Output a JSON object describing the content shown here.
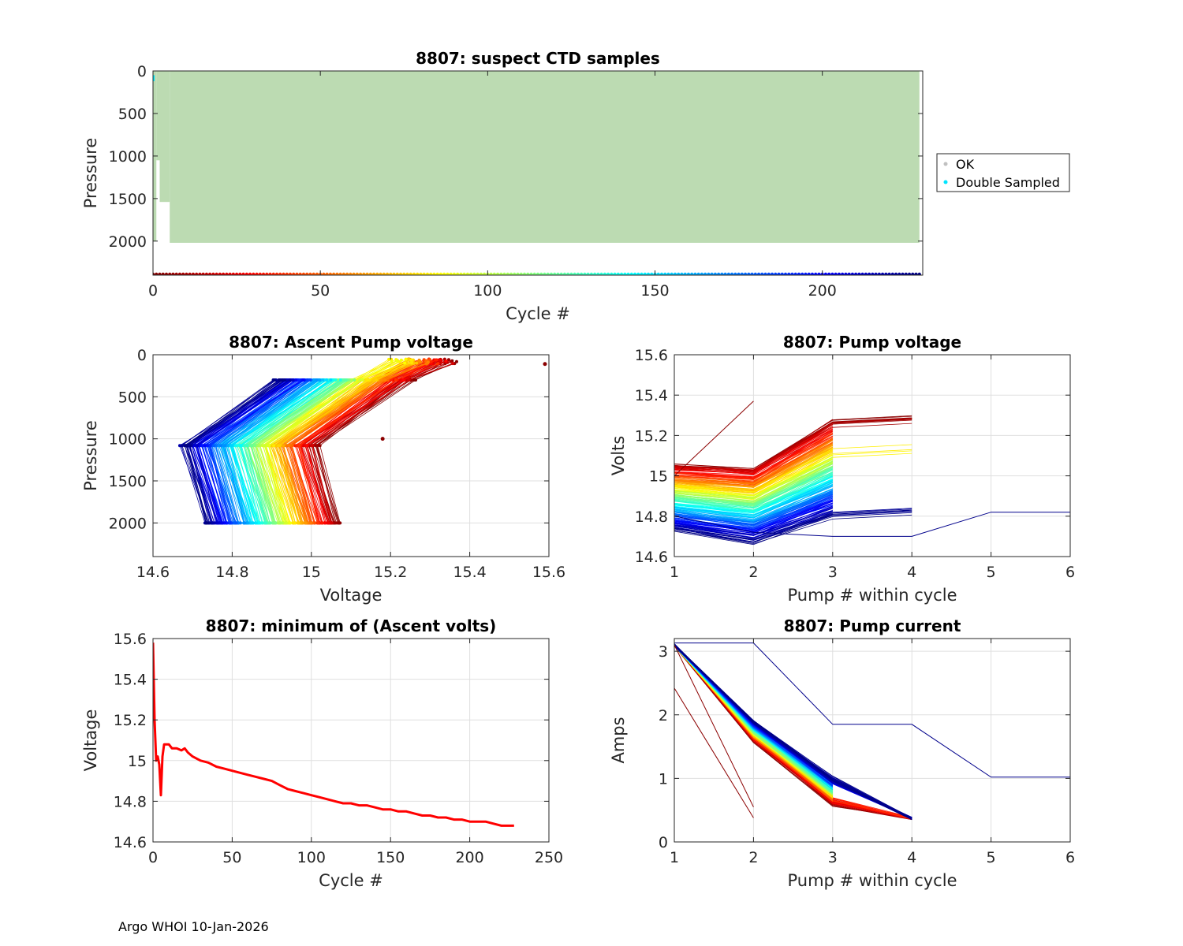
{
  "footer": "Argo WHOI 10-Jan-2026",
  "chart_data": [
    {
      "id": "suspect-ctd",
      "type": "scatter",
      "title": "8807: suspect CTD samples",
      "xlabel": "Cycle #",
      "ylabel": "Pressure",
      "xlim": [
        0,
        230
      ],
      "ylim": [
        2400,
        0
      ],
      "y_reversed": true,
      "xticks": [
        0,
        50,
        100,
        150,
        200
      ],
      "yticks": [
        0,
        500,
        1000,
        1500,
        2000
      ],
      "grid": false,
      "legend": {
        "placement": "outside-right",
        "entries": [
          {
            "label": "OK",
            "color": "#c0c0c0"
          },
          {
            "label": "Double Sampled",
            "color": "#00e5ff"
          }
        ]
      },
      "ok_fill_color": "#bcdbb2",
      "profiles": [
        {
          "cycle_start": 0,
          "cycle_end": 1,
          "max_pressure": 2000
        },
        {
          "cycle_start": 1,
          "cycle_end": 2,
          "max_pressure": 1050
        },
        {
          "cycle_start": 2,
          "cycle_end": 5,
          "max_pressure": 1540
        },
        {
          "cycle_start": 5,
          "cycle_end": 229,
          "max_pressure": 2020
        }
      ],
      "double_sampled": [
        {
          "cycle": 0,
          "pressure_top": 50,
          "pressure_bottom": 120
        }
      ],
      "cycle_colorbar": {
        "cycle_start": 0,
        "cycle_end": 229,
        "colormap": "jet-reversed"
      }
    },
    {
      "id": "ascent-pump-voltage",
      "type": "line",
      "title": "8807: Ascent Pump voltage",
      "xlabel": "Voltage",
      "ylabel": "Pressure",
      "xlim": [
        14.6,
        15.6
      ],
      "ylim": [
        2400,
        0
      ],
      "y_reversed": true,
      "xticks": [
        14.6,
        14.8,
        15,
        15.2,
        15.4,
        15.6
      ],
      "yticks": [
        0,
        500,
        1000,
        1500,
        2000
      ],
      "grid": true,
      "series_by_cycle": {
        "colormap": "jet-reversed",
        "cycle_count": 229
      },
      "pump_pressures": [
        2000,
        1080,
        300,
        50
      ],
      "outlier_points": [
        {
          "x": 15.59,
          "y": 110
        },
        {
          "x": 15.18,
          "y": 1000
        }
      ]
    },
    {
      "id": "pump-voltage",
      "type": "line",
      "title": "8807: Pump voltage",
      "xlabel": "Pump # within cycle",
      "ylabel": "Volts",
      "xlim": [
        1,
        6
      ],
      "ylim": [
        14.6,
        15.6
      ],
      "xticks": [
        1,
        2,
        3,
        4,
        5,
        6
      ],
      "yticks": [
        14.6,
        14.8,
        15,
        15.2,
        15.4,
        15.6
      ],
      "ytick_labels": [
        "14.6",
        "14.8",
        "15",
        "15.2",
        "15.4",
        "15.6"
      ],
      "grid": true,
      "series_by_cycle": {
        "colormap": "jet-reversed",
        "cycle_count": 229
      },
      "special_series": [
        {
          "x": [
            1,
            2,
            3,
            4,
            5,
            6
          ],
          "y": [
            14.8,
            14.72,
            14.7,
            14.7,
            14.82,
            14.82
          ],
          "color": "#00008b"
        },
        {
          "x": [
            1,
            2
          ],
          "y": [
            15.0,
            15.37
          ],
          "color": "#8b0000"
        }
      ]
    },
    {
      "id": "min-ascent-volts",
      "type": "line",
      "title": "8807: minimum of (Ascent volts)",
      "xlabel": "Cycle #",
      "ylabel": "Voltage",
      "xlim": [
        0,
        250
      ],
      "ylim": [
        14.6,
        15.6
      ],
      "xticks": [
        0,
        50,
        100,
        150,
        200,
        250
      ],
      "yticks": [
        14.6,
        14.8,
        15,
        15.2,
        15.4,
        15.6
      ],
      "ytick_labels": [
        "14.6",
        "14.8",
        "15",
        "15.2",
        "15.4",
        "15.6"
      ],
      "grid": true,
      "series": [
        {
          "name": "min ascent volts",
          "color": "#ff0000",
          "x": [
            0,
            1,
            2,
            3,
            4,
            5,
            6,
            7,
            8,
            10,
            12,
            15,
            18,
            20,
            22,
            25,
            30,
            35,
            40,
            45,
            50,
            55,
            60,
            65,
            70,
            75,
            80,
            85,
            90,
            95,
            100,
            105,
            110,
            115,
            120,
            125,
            130,
            135,
            140,
            145,
            150,
            155,
            160,
            165,
            170,
            175,
            180,
            185,
            190,
            195,
            200,
            205,
            210,
            215,
            220,
            225,
            228
          ],
          "y": [
            15.58,
            15.2,
            15.0,
            15.02,
            14.98,
            14.83,
            15.02,
            15.08,
            15.08,
            15.08,
            15.06,
            15.06,
            15.05,
            15.06,
            15.04,
            15.02,
            15.0,
            14.99,
            14.97,
            14.96,
            14.95,
            14.94,
            14.93,
            14.92,
            14.91,
            14.9,
            14.88,
            14.86,
            14.85,
            14.84,
            14.83,
            14.82,
            14.81,
            14.8,
            14.79,
            14.79,
            14.78,
            14.78,
            14.77,
            14.76,
            14.76,
            14.75,
            14.75,
            14.74,
            14.73,
            14.73,
            14.72,
            14.72,
            14.71,
            14.71,
            14.7,
            14.7,
            14.7,
            14.69,
            14.68,
            14.68,
            14.68
          ]
        }
      ]
    },
    {
      "id": "pump-current",
      "type": "line",
      "title": "8807: Pump current",
      "xlabel": "Pump # within cycle",
      "ylabel": "Amps",
      "xlim": [
        1,
        6
      ],
      "ylim": [
        0,
        3.2
      ],
      "xticks": [
        1,
        2,
        3,
        4,
        5,
        6
      ],
      "yticks": [
        0,
        1,
        2,
        3
      ],
      "grid": true,
      "series_by_cycle": {
        "colormap": "jet-reversed",
        "cycle_count": 229
      },
      "special_series": [
        {
          "x": [
            1,
            2,
            3,
            4,
            5,
            6
          ],
          "y": [
            3.13,
            3.13,
            1.85,
            1.85,
            1.02,
            1.02
          ],
          "color": "#00008b"
        },
        {
          "x": [
            1,
            2
          ],
          "y": [
            2.42,
            0.38
          ],
          "color": "#8b0000"
        },
        {
          "x": [
            1,
            2
          ],
          "y": [
            3.1,
            0.55
          ],
          "color": "#8b0000"
        }
      ]
    }
  ]
}
